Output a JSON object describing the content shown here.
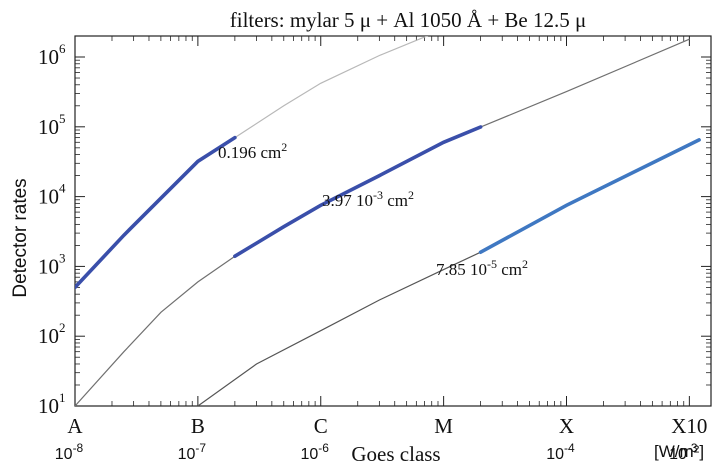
{
  "chart_data": {
    "type": "line",
    "title": "filters:  mylar 5 μ  + Al 1050 Å + Be 12.5 μ",
    "ylabel": "Detector rates",
    "xlabel": "Goes class",
    "x_unit": "[W/m²]",
    "x_scale": "log",
    "y_scale": "log",
    "xlim": [
      1e-08,
      0.0015
    ],
    "ylim": [
      10,
      2000000
    ],
    "grid": false,
    "legend": "none",
    "class_ticks": [
      {
        "x": 1e-08,
        "letter": "A",
        "value": "10-8"
      },
      {
        "x": 1e-07,
        "letter": "B",
        "value": "10-7"
      },
      {
        "x": 1e-06,
        "letter": "C",
        "value": "10-6"
      },
      {
        "x": 1e-05,
        "letter": "M",
        "value": ""
      },
      {
        "x": 0.0001,
        "letter": "X",
        "value": "10-4"
      },
      {
        "x": 0.001,
        "letter": "X10",
        "value": "10-3"
      }
    ],
    "y_ticks": [
      {
        "y": 10,
        "base": "10",
        "exp": "1"
      },
      {
        "y": 100,
        "base": "10",
        "exp": "2"
      },
      {
        "y": 1000,
        "base": "10",
        "exp": "3"
      },
      {
        "y": 10000,
        "base": "10",
        "exp": "4"
      },
      {
        "y": 100000,
        "base": "10",
        "exp": "5"
      },
      {
        "y": 1000000,
        "base": "10",
        "exp": "6"
      }
    ],
    "series": [
      {
        "area_label": "0.196 cm",
        "area_label_sup": "2",
        "color_full": "#b8b8b8",
        "color_highlight": "#3a4faa",
        "x": [
          1e-08,
          2.5e-08,
          5e-08,
          1e-07,
          2e-07,
          5e-07,
          1e-06,
          3e-06,
          1e-05
        ],
        "y": [
          500,
          2800,
          9500,
          32000,
          70000,
          200000,
          420000,
          1050000,
          2500000
        ],
        "highlight_range": [
          1e-08,
          2e-07
        ]
      },
      {
        "area_label": "3.97 10",
        "area_label_exp": "-3",
        "area_label_tail": " cm",
        "area_label_sup": "2",
        "color_full": "#707070",
        "color_highlight": "#3a4faa",
        "x": [
          1e-08,
          2.5e-08,
          5e-08,
          1e-07,
          2e-07,
          5e-07,
          1e-06,
          3e-06,
          1e-05,
          0.0001,
          0.001
        ],
        "y": [
          10,
          60,
          220,
          600,
          1400,
          3700,
          7500,
          20000,
          60000,
          320000,
          1800000
        ],
        "highlight_range": [
          2e-07,
          2e-05
        ]
      },
      {
        "area_label": "7.85 10",
        "area_label_exp": "-5",
        "area_label_tail": " cm",
        "area_label_sup": "2",
        "color_full": "#555555",
        "color_highlight": "#3f78c2",
        "x": [
          1e-07,
          3e-07,
          1e-06,
          3e-06,
          1e-05,
          2e-05,
          0.0001,
          0.0012
        ],
        "y": [
          10,
          40,
          120,
          330,
          900,
          1600,
          7500,
          65000
        ],
        "highlight_range": [
          2e-05,
          0.0012
        ]
      }
    ]
  }
}
